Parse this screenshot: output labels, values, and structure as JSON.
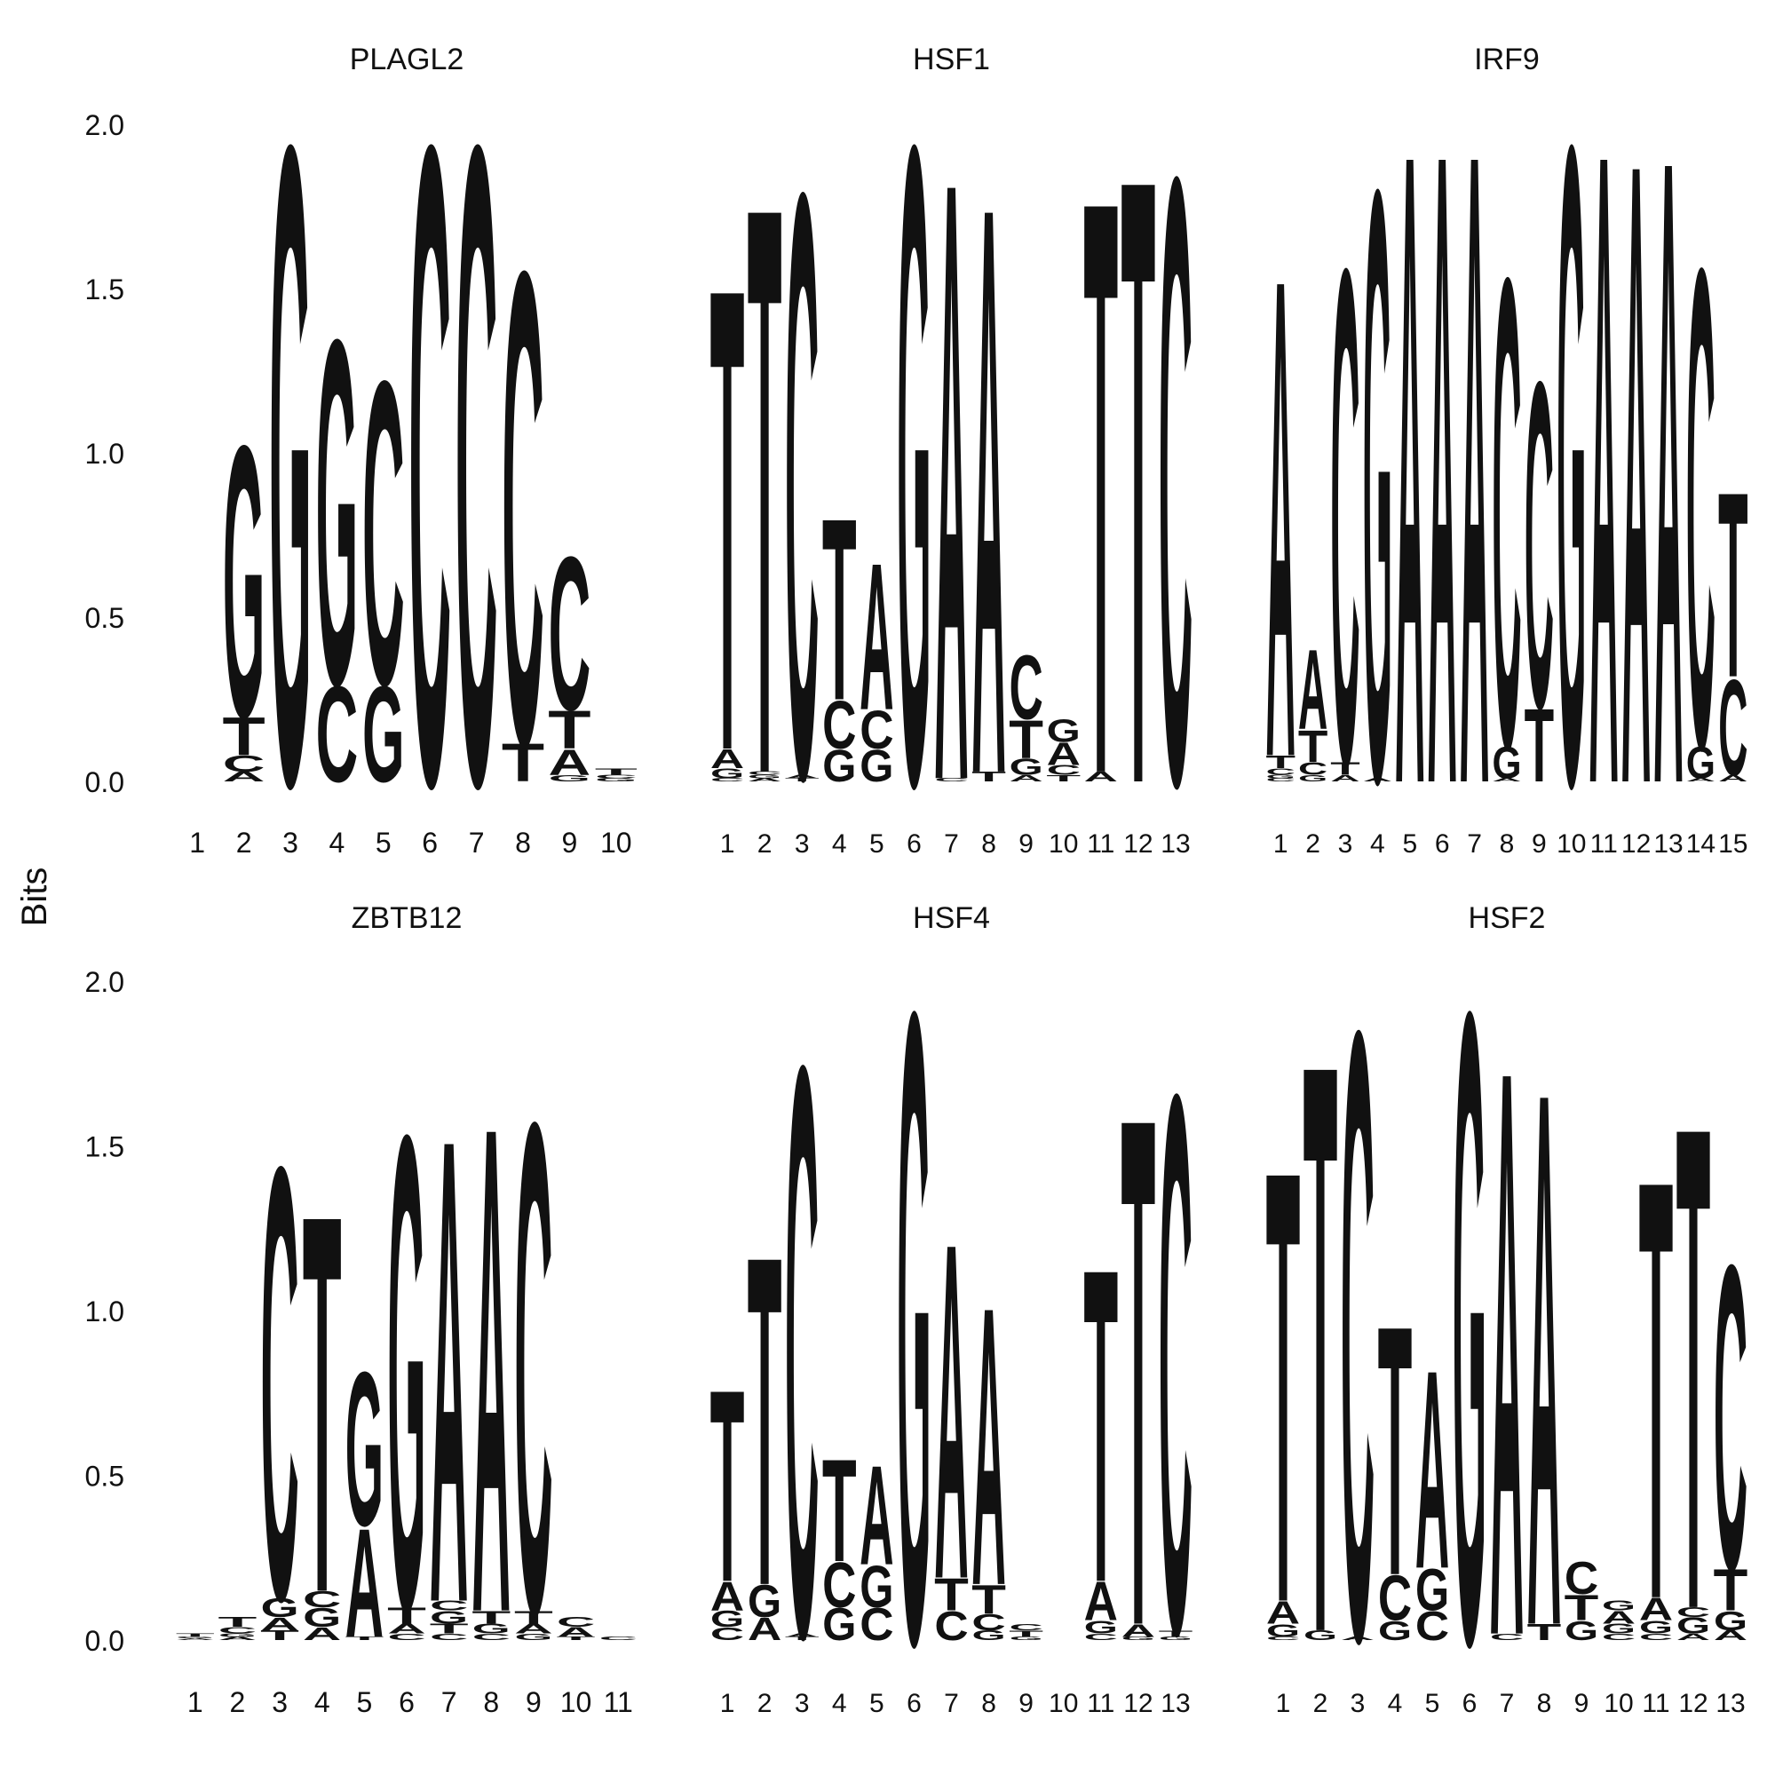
{
  "figure": {
    "y_axis_label": "Bits",
    "y_ticks": [
      "0.0",
      "0.5",
      "1.0",
      "1.5",
      "2.0"
    ],
    "colors": {
      "A": "#109648",
      "C": "#255C99",
      "G": "#F7B32B",
      "T": "#D62839"
    }
  },
  "chart_data": [
    {
      "type": "sequence_logo",
      "title": "PLAGL2",
      "ylim": [
        0,
        2
      ],
      "positions": [
        "1",
        "2",
        "3",
        "4",
        "5",
        "6",
        "7",
        "8",
        "9",
        "10"
      ],
      "stacks": [
        [],
        [
          [
            "A",
            0.03
          ],
          [
            "C",
            0.05
          ],
          [
            "T",
            0.12
          ],
          [
            "G",
            0.85
          ]
        ],
        [
          [
            "G",
            2.0
          ]
        ],
        [
          [
            "C",
            0.3
          ],
          [
            "G",
            1.08
          ]
        ],
        [
          [
            "G",
            0.3
          ],
          [
            "C",
            0.95
          ]
        ],
        [
          [
            "C",
            2.0
          ]
        ],
        [
          [
            "C",
            2.0
          ]
        ],
        [
          [
            "T",
            0.12
          ],
          [
            "C",
            1.48
          ]
        ],
        [
          [
            "G",
            0.02
          ],
          [
            "A",
            0.08
          ],
          [
            "T",
            0.12
          ],
          [
            "C",
            0.48
          ]
        ],
        [
          [
            "G",
            0.01
          ],
          [
            "C",
            0.01
          ],
          [
            "T",
            0.02
          ]
        ]
      ]
    },
    {
      "type": "sequence_logo",
      "title": "HSF1",
      "ylim": [
        0,
        2
      ],
      "positions": [
        "1",
        "2",
        "3",
        "4",
        "5",
        "6",
        "7",
        "8",
        "9",
        "10",
        "11",
        "12",
        "13"
      ],
      "stacks": [
        [
          [
            "C",
            0.01
          ],
          [
            "G",
            0.03
          ],
          [
            "A",
            0.06
          ],
          [
            "T",
            1.45
          ]
        ],
        [
          [
            "A",
            0.01
          ],
          [
            "G",
            0.01
          ],
          [
            "C",
            0.01
          ],
          [
            "T",
            1.78
          ]
        ],
        [
          [
            "T",
            0.01
          ],
          [
            "A",
            0.01
          ],
          [
            "C",
            1.83
          ]
        ],
        [
          [
            "G",
            0.1
          ],
          [
            "C",
            0.15
          ],
          [
            "T",
            0.57
          ]
        ],
        [
          [
            "G",
            0.1
          ],
          [
            "C",
            0.12
          ],
          [
            "A",
            0.46
          ]
        ],
        [
          [
            "G",
            2.0
          ]
        ],
        [
          [
            "C",
            0.01
          ],
          [
            "A",
            1.88
          ]
        ],
        [
          [
            "T",
            0.03
          ],
          [
            "A",
            1.78
          ]
        ],
        [
          [
            "A",
            0.02
          ],
          [
            "G",
            0.05
          ],
          [
            "T",
            0.12
          ],
          [
            "C",
            0.2
          ]
        ],
        [
          [
            "T",
            0.02
          ],
          [
            "C",
            0.03
          ],
          [
            "A",
            0.07
          ],
          [
            "G",
            0.07
          ]
        ],
        [
          [
            "A",
            0.03
          ],
          [
            "T",
            1.8
          ]
        ],
        [
          [
            "T",
            1.9
          ]
        ],
        [
          [
            "C",
            1.9
          ]
        ]
      ]
    },
    {
      "type": "sequence_logo",
      "title": "IRF9",
      "ylim": [
        0,
        2
      ],
      "positions": [
        "1",
        "2",
        "3",
        "4",
        "5",
        "6",
        "7",
        "8",
        "9",
        "10",
        "11",
        "12",
        "13",
        "14",
        "15"
      ],
      "stacks": [
        [
          [
            "C",
            0.01
          ],
          [
            "G",
            0.01
          ],
          [
            "C",
            0.02
          ],
          [
            "T",
            0.04
          ],
          [
            "A",
            1.5
          ]
        ],
        [
          [
            "G",
            0.02
          ],
          [
            "C",
            0.04
          ],
          [
            "T",
            0.1
          ],
          [
            "A",
            0.25
          ]
        ],
        [
          [
            "A",
            0.02
          ],
          [
            "T",
            0.04
          ],
          [
            "C",
            1.55
          ]
        ],
        [
          [
            "A",
            0.01
          ],
          [
            "G",
            1.85
          ]
        ],
        [
          [
            "A",
            1.98
          ]
        ],
        [
          [
            "A",
            1.98
          ]
        ],
        [
          [
            "A",
            1.98
          ]
        ],
        [
          [
            "A",
            0.01
          ],
          [
            "G",
            0.1
          ],
          [
            "C",
            1.47
          ]
        ],
        [
          [
            "T",
            0.23
          ],
          [
            "C",
            1.02
          ]
        ],
        [
          [
            "G",
            2.0
          ]
        ],
        [
          [
            "A",
            1.98
          ]
        ],
        [
          [
            "A",
            1.95
          ]
        ],
        [
          [
            "A",
            1.96
          ]
        ],
        [
          [
            "A",
            0.01
          ],
          [
            "G",
            0.1
          ],
          [
            "C",
            1.5
          ]
        ],
        [
          [
            "A",
            0.02
          ],
          [
            "C",
            0.3
          ],
          [
            "T",
            0.58
          ]
        ]
      ]
    },
    {
      "type": "sequence_logo",
      "title": "ZBTB12",
      "ylim": [
        0,
        2
      ],
      "positions": [
        "1",
        "2",
        "3",
        "4",
        "5",
        "6",
        "7",
        "8",
        "9",
        "10",
        "11"
      ],
      "stacks": [
        [
          [
            "A",
            0.005
          ],
          [
            "G",
            0.005
          ],
          [
            "T",
            0.01
          ]
        ],
        [
          [
            "A",
            0.01
          ],
          [
            "G",
            0.01
          ],
          [
            "C",
            0.02
          ],
          [
            "T",
            0.03
          ]
        ],
        [
          [
            "T",
            0.03
          ],
          [
            "A",
            0.04
          ],
          [
            "G",
            0.06
          ],
          [
            "C",
            1.35
          ]
        ],
        [
          [
            "A",
            0.04
          ],
          [
            "G",
            0.06
          ],
          [
            "C",
            0.05
          ],
          [
            "T",
            1.18
          ]
        ],
        [
          [
            "T",
            0.01
          ],
          [
            "A",
            0.34
          ],
          [
            "G",
            0.48
          ]
        ],
        [
          [
            "C",
            0.02
          ],
          [
            "A",
            0.03
          ],
          [
            "T",
            0.05
          ],
          [
            "G",
            1.48
          ]
        ],
        [
          [
            "C",
            0.02
          ],
          [
            "T",
            0.03
          ],
          [
            "G",
            0.04
          ],
          [
            "C",
            0.03
          ],
          [
            "A",
            1.45
          ]
        ],
        [
          [
            "C",
            0.02
          ],
          [
            "G",
            0.03
          ],
          [
            "T",
            0.04
          ],
          [
            "A",
            1.52
          ]
        ],
        [
          [
            "G",
            0.02
          ],
          [
            "A",
            0.03
          ],
          [
            "T",
            0.04
          ],
          [
            "C",
            1.53
          ]
        ],
        [
          [
            "T",
            0.01
          ],
          [
            "A",
            0.03
          ],
          [
            "C",
            0.03
          ]
        ],
        [
          [
            "C",
            0.01
          ]
        ]
      ]
    },
    {
      "type": "sequence_logo",
      "title": "HSF4",
      "ylim": [
        0,
        2
      ],
      "positions": [
        "1",
        "2",
        "3",
        "4",
        "5",
        "6",
        "7",
        "8",
        "9",
        "10",
        "11",
        "12",
        "13"
      ],
      "stacks": [
        [
          [
            "C",
            0.04
          ],
          [
            "G",
            0.05
          ],
          [
            "A",
            0.09
          ],
          [
            "T",
            0.6
          ]
        ],
        [
          [
            "A",
            0.07
          ],
          [
            "G",
            0.1
          ],
          [
            "T",
            1.03
          ]
        ],
        [
          [
            "T",
            0.01
          ],
          [
            "A",
            0.01
          ],
          [
            "C",
            1.78
          ]
        ],
        [
          [
            "G",
            0.1
          ],
          [
            "C",
            0.14
          ],
          [
            "T",
            0.32
          ]
        ],
        [
          [
            "C",
            0.1
          ],
          [
            "G",
            0.13
          ],
          [
            "A",
            0.31
          ]
        ],
        [
          [
            "G",
            1.97
          ]
        ],
        [
          [
            "C",
            0.09
          ],
          [
            "T",
            0.1
          ],
          [
            "A",
            1.05
          ]
        ],
        [
          [
            "G",
            0.03
          ],
          [
            "C",
            0.05
          ],
          [
            "T",
            0.09
          ],
          [
            "A",
            0.87
          ]
        ],
        [
          [
            "G",
            0.01
          ],
          [
            "T",
            0.02
          ],
          [
            "C",
            0.02
          ]
        ],
        [],
        [
          [
            "C",
            0.02
          ],
          [
            "G",
            0.04
          ],
          [
            "A",
            0.12
          ],
          [
            "T",
            0.98
          ]
        ],
        [
          [
            "G",
            0.01
          ],
          [
            "A",
            0.04
          ],
          [
            "T",
            1.59
          ]
        ],
        [
          [
            "G",
            0.01
          ],
          [
            "T",
            0.02
          ],
          [
            "C",
            1.68
          ]
        ]
      ]
    },
    {
      "type": "sequence_logo",
      "title": "HSF2",
      "ylim": [
        0,
        2
      ],
      "positions": [
        "1",
        "2",
        "3",
        "4",
        "5",
        "6",
        "7",
        "8",
        "9",
        "10",
        "11",
        "12",
        "13"
      ],
      "stacks": [
        [
          [
            "C",
            0.01
          ],
          [
            "G",
            0.04
          ],
          [
            "A",
            0.07
          ],
          [
            "T",
            1.35
          ]
        ],
        [
          [
            "G",
            0.03
          ],
          [
            "T",
            1.78
          ]
        ],
        [
          [
            "A",
            0.01
          ],
          [
            "C",
            1.9
          ]
        ],
        [
          [
            "G",
            0.06
          ],
          [
            "C",
            0.14
          ],
          [
            "T",
            0.78
          ]
        ],
        [
          [
            "C",
            0.09
          ],
          [
            "G",
            0.13
          ],
          [
            "A",
            0.62
          ]
        ],
        [
          [
            "G",
            1.97
          ]
        ],
        [
          [
            "C",
            0.02
          ],
          [
            "A",
            1.77
          ]
        ],
        [
          [
            "T",
            0.05
          ],
          [
            "A",
            1.67
          ]
        ],
        [
          [
            "G",
            0.06
          ],
          [
            "T",
            0.08
          ],
          [
            "C",
            0.1
          ]
        ],
        [
          [
            "C",
            0.02
          ],
          [
            "G",
            0.03
          ],
          [
            "A",
            0.04
          ],
          [
            "G",
            0.03
          ]
        ],
        [
          [
            "C",
            0.02
          ],
          [
            "G",
            0.04
          ],
          [
            "A",
            0.07
          ],
          [
            "T",
            1.31
          ]
        ],
        [
          [
            "A",
            0.02
          ],
          [
            "G",
            0.05
          ],
          [
            "C",
            0.03
          ],
          [
            "T",
            1.51
          ]
        ],
        [
          [
            "A",
            0.03
          ],
          [
            "G",
            0.06
          ],
          [
            "T",
            0.13
          ],
          [
            "C",
            0.95
          ]
        ]
      ]
    }
  ]
}
